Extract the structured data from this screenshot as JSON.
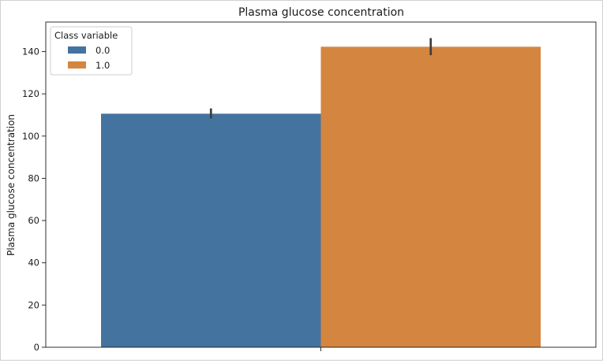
{
  "chart_data": {
    "type": "bar",
    "title": "Plasma glucose concentration",
    "xlabel": "",
    "ylabel": "Plasma glucose concentration",
    "ylim": [
      0,
      154
    ],
    "yticks": [
      "0",
      "20",
      "40",
      "60",
      "80",
      "100",
      "120",
      "140"
    ],
    "grid": false,
    "legend": {
      "title": "Class variable",
      "placement": "top-left"
    },
    "series": [
      {
        "name": "0.0",
        "value": 110.6,
        "err_low": 108.4,
        "err_high": 113.1,
        "color": "#4473a0"
      },
      {
        "name": "1.0",
        "value": 142.3,
        "err_low": 138.3,
        "err_high": 146.4,
        "color": "#d4853f"
      }
    ]
  }
}
